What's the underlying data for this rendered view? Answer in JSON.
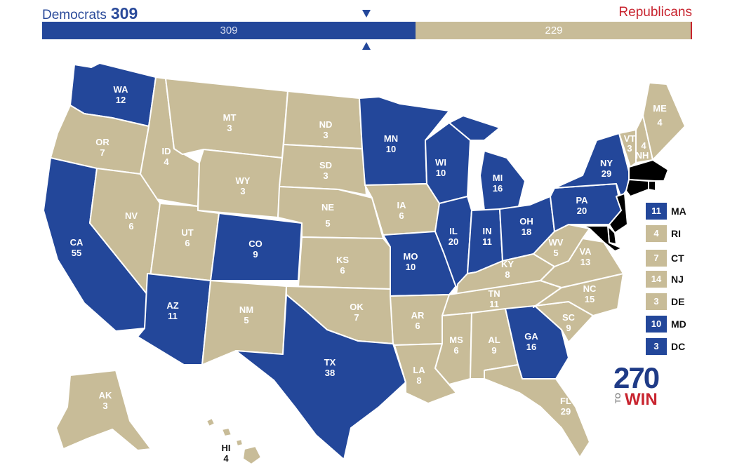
{
  "header": {
    "dem_label": "Democrats",
    "dem_total": "309",
    "rep_label": "Republicans"
  },
  "bar": {
    "dem_value": 309,
    "rep_value": 229,
    "total": 538,
    "dem_text": "309",
    "rep_text": "229"
  },
  "colors": {
    "dem": "#23479a",
    "rep": "#c8bc98",
    "rep_accent": "#c8242f"
  },
  "states": {
    "WA": {
      "abbr": "WA",
      "ev": "12",
      "party": "dem"
    },
    "OR": {
      "abbr": "OR",
      "ev": "7",
      "party": "rep"
    },
    "CA": {
      "abbr": "CA",
      "ev": "55",
      "party": "dem"
    },
    "ID": {
      "abbr": "ID",
      "ev": "4",
      "party": "rep"
    },
    "NV": {
      "abbr": "NV",
      "ev": "6",
      "party": "rep"
    },
    "MT": {
      "abbr": "MT",
      "ev": "3",
      "party": "rep"
    },
    "WY": {
      "abbr": "WY",
      "ev": "3",
      "party": "rep"
    },
    "UT": {
      "abbr": "UT",
      "ev": "6",
      "party": "rep"
    },
    "AZ": {
      "abbr": "AZ",
      "ev": "11",
      "party": "dem"
    },
    "CO": {
      "abbr": "CO",
      "ev": "9",
      "party": "dem"
    },
    "NM": {
      "abbr": "NM",
      "ev": "5",
      "party": "rep"
    },
    "ND": {
      "abbr": "ND",
      "ev": "3",
      "party": "rep"
    },
    "SD": {
      "abbr": "SD",
      "ev": "3",
      "party": "rep"
    },
    "NE": {
      "abbr": "NE",
      "ev": "5",
      "party": "rep"
    },
    "KS": {
      "abbr": "KS",
      "ev": "6",
      "party": "rep"
    },
    "OK": {
      "abbr": "OK",
      "ev": "7",
      "party": "rep"
    },
    "TX": {
      "abbr": "TX",
      "ev": "38",
      "party": "dem"
    },
    "MN": {
      "abbr": "MN",
      "ev": "10",
      "party": "dem"
    },
    "IA": {
      "abbr": "IA",
      "ev": "6",
      "party": "rep"
    },
    "MO": {
      "abbr": "MO",
      "ev": "10",
      "party": "dem"
    },
    "AR": {
      "abbr": "AR",
      "ev": "6",
      "party": "rep"
    },
    "LA": {
      "abbr": "LA",
      "ev": "8",
      "party": "rep"
    },
    "WI": {
      "abbr": "WI",
      "ev": "10",
      "party": "dem"
    },
    "IL": {
      "abbr": "IL",
      "ev": "20",
      "party": "dem"
    },
    "MI": {
      "abbr": "MI",
      "ev": "16",
      "party": "dem"
    },
    "IN": {
      "abbr": "IN",
      "ev": "11",
      "party": "dem"
    },
    "OH": {
      "abbr": "OH",
      "ev": "18",
      "party": "dem"
    },
    "KY": {
      "abbr": "KY",
      "ev": "8",
      "party": "rep"
    },
    "TN": {
      "abbr": "TN",
      "ev": "11",
      "party": "rep"
    },
    "MS": {
      "abbr": "MS",
      "ev": "6",
      "party": "rep"
    },
    "AL": {
      "abbr": "AL",
      "ev": "9",
      "party": "rep"
    },
    "GA": {
      "abbr": "GA",
      "ev": "16",
      "party": "dem"
    },
    "FL": {
      "abbr": "FL",
      "ev": "29",
      "party": "rep"
    },
    "SC": {
      "abbr": "SC",
      "ev": "9",
      "party": "rep"
    },
    "NC": {
      "abbr": "NC",
      "ev": "15",
      "party": "rep"
    },
    "VA": {
      "abbr": "VA",
      "ev": "13",
      "party": "rep"
    },
    "WV": {
      "abbr": "WV",
      "ev": "5",
      "party": "rep"
    },
    "PA": {
      "abbr": "PA",
      "ev": "20",
      "party": "dem"
    },
    "NY": {
      "abbr": "NY",
      "ev": "29",
      "party": "dem"
    },
    "VT": {
      "abbr": "VT",
      "ev": "3",
      "party": "rep"
    },
    "NH": {
      "abbr": "NH",
      "ev": "4",
      "party": "rep"
    },
    "ME": {
      "abbr": "ME",
      "ev": "4",
      "party": "rep"
    },
    "AK": {
      "abbr": "AK",
      "ev": "3",
      "party": "rep"
    },
    "HI": {
      "abbr": "HI",
      "ev": "4",
      "party": "rep"
    }
  },
  "small_states": [
    {
      "abbr": "MA",
      "ev": "11",
      "party": "dem"
    },
    {
      "abbr": "RI",
      "ev": "4",
      "party": "rep"
    },
    {
      "abbr": "CT",
      "ev": "7",
      "party": "rep"
    },
    {
      "abbr": "NJ",
      "ev": "14",
      "party": "rep"
    },
    {
      "abbr": "DE",
      "ev": "3",
      "party": "rep"
    },
    {
      "abbr": "MD",
      "ev": "10",
      "party": "dem"
    },
    {
      "abbr": "DC",
      "ev": "3",
      "party": "dem"
    }
  ],
  "logo": {
    "number": "270",
    "to": "TO",
    "win": "WIN"
  }
}
